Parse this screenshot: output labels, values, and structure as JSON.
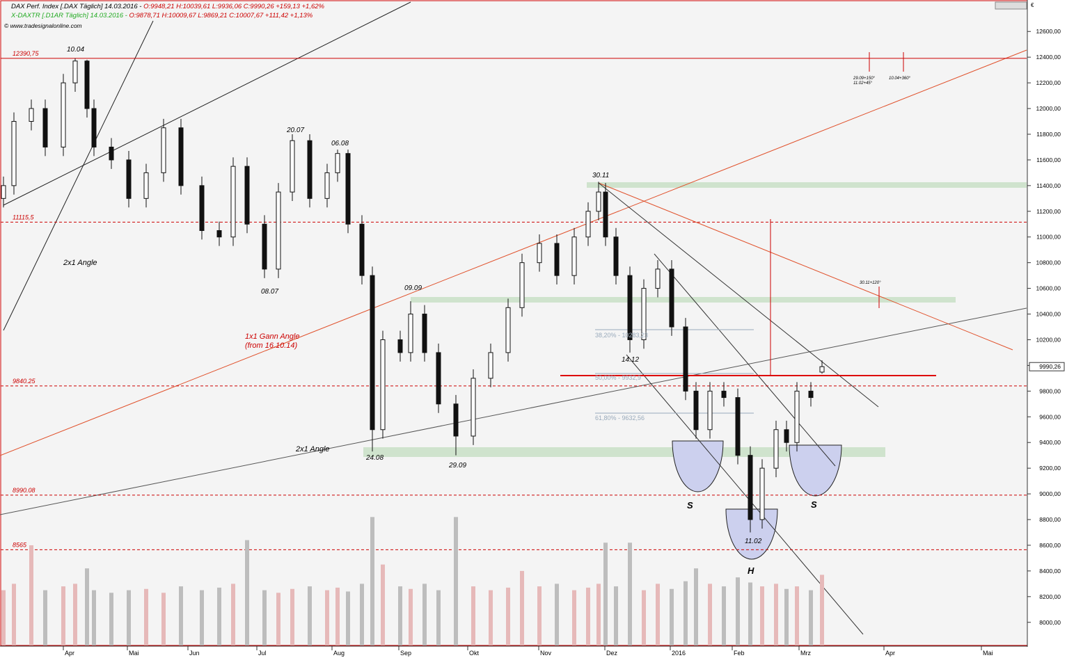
{
  "chart_data": {
    "type": "candlestick",
    "header": {
      "name1": "DAX Perf. Index [.DAX  Täglich] 14.03.2016 - ",
      "values1": "O:9948,21 H:10039,61 L:9936,06 C:9990,26 +159,13 +1,62%",
      "name2": "X-DAXTR [.D1AR  Täglich] 14.03.2016 - ",
      "values2": "O:9878,71 H:10009,67 L:9869,21 C:10007,67 +111,42 +1,13%",
      "source": "© www.tradesignalonline.com",
      "currency": "€"
    },
    "x": [
      1,
      4,
      9,
      13,
      18.2,
      21.6,
      25,
      27,
      32,
      37,
      42,
      47,
      52,
      58,
      63,
      67,
      71,
      76,
      80,
      84,
      89,
      94,
      97,
      100,
      104,
      107,
      110,
      115,
      118,
      122,
      126,
      131,
      136,
      141,
      146,
      150,
      155,
      160,
      165,
      169,
      172,
      174,
      177,
      181,
      185,
      189,
      193,
      197,
      200,
      204,
      208,
      212,
      215.6,
      219,
      223,
      226,
      229,
      233,
      236.2
    ],
    "open": [
      11300,
      11400,
      11900,
      12000,
      11700,
      12200,
      12370,
      12000,
      11700,
      11600,
      11300,
      11500,
      11850,
      11400,
      11050,
      11000,
      11550,
      11100,
      10750,
      11350,
      11750,
      11300,
      11500,
      11650,
      11100,
      10700,
      9500,
      10200,
      10100,
      10400,
      10100,
      9700,
      9450,
      9900,
      10100,
      10450,
      10800,
      10950,
      10700,
      11000,
      11200,
      11350,
      11000,
      10700,
      10200,
      10600,
      10750,
      10300,
      9800,
      9500,
      9800,
      9750,
      9300,
      8800,
      9200,
      9500,
      9400,
      9800,
      9948.21
    ],
    "high": [
      11470,
      11970,
      12070,
      12070,
      12270,
      12390,
      12380,
      12070,
      11770,
      11670,
      11570,
      11920,
      11920,
      11470,
      11120,
      11620,
      11620,
      11170,
      11420,
      11800,
      11800,
      11570,
      11680,
      11680,
      11170,
      10770,
      10270,
      10270,
      10500,
      10470,
      10170,
      9770,
      9970,
      10170,
      10520,
      10870,
      11020,
      11020,
      11070,
      11270,
      11430,
      11420,
      11070,
      10770,
      10670,
      10820,
      10820,
      10370,
      9870,
      9870,
      9870,
      9820,
      9370,
      9270,
      9570,
      9570,
      9870,
      9870,
      10039.61
    ],
    "low": [
      11230,
      11330,
      11830,
      11630,
      11630,
      12130,
      11930,
      11630,
      11530,
      11230,
      11230,
      11430,
      11330,
      10980,
      10930,
      10930,
      11030,
      10680,
      10680,
      11280,
      11230,
      11230,
      11430,
      11030,
      10630,
      9330,
      9430,
      10030,
      10030,
      10030,
      9630,
      9300,
      9380,
      9830,
      10030,
      10380,
      10730,
      10630,
      10630,
      10930,
      11130,
      10930,
      10630,
      10100,
      10130,
      10530,
      10230,
      9730,
      9430,
      9430,
      9680,
      9230,
      8700,
      8730,
      9130,
      9330,
      9330,
      9680,
      9936.06
    ],
    "close": [
      11400,
      11900,
      12000,
      11700,
      12200,
      12370,
      12000,
      11700,
      11600,
      11300,
      11500,
      11850,
      11400,
      11050,
      11000,
      11550,
      11100,
      10750,
      11350,
      11750,
      11300,
      11500,
      11650,
      11100,
      10700,
      9500,
      10200,
      10100,
      10400,
      10100,
      9700,
      9450,
      9900,
      10100,
      10450,
      10800,
      10950,
      10700,
      11000,
      11200,
      11350,
      11000,
      10700,
      10200,
      10600,
      10750,
      10300,
      9800,
      9500,
      9800,
      9750,
      9300,
      8800,
      9200,
      9500,
      9400,
      9800,
      9750,
      9990.26
    ],
    "volume": [
      8250,
      8300,
      8600,
      8250,
      8280,
      8300,
      8420,
      8250,
      8230,
      8250,
      8260,
      8230,
      8280,
      8250,
      8270,
      8300,
      8640,
      8250,
      8230,
      8260,
      8280,
      8250,
      8270,
      8240,
      8300,
      8820,
      8450,
      8280,
      8260,
      8300,
      8250,
      8820,
      8280,
      8250,
      8270,
      8400,
      8280,
      8300,
      8250,
      8270,
      8300,
      8620,
      8280,
      8620,
      8250,
      8300,
      8260,
      8320,
      8420,
      8300,
      8280,
      8350,
      8310,
      8280,
      8300,
      8260,
      8280,
      8250,
      8370
    ],
    "last_price_label": "9990,26",
    "xlim": [
      0,
      295
    ],
    "ylim": [
      7820,
      12845
    ],
    "xticks": [
      {
        "value": 18.2,
        "label": "Apr"
      },
      {
        "value": 36.6,
        "label": "Mai"
      },
      {
        "value": 54,
        "label": "Jun"
      },
      {
        "value": 73.8,
        "label": "Jul"
      },
      {
        "value": 95.4,
        "label": "Aug"
      },
      {
        "value": 114.6,
        "label": "Sep"
      },
      {
        "value": 134.4,
        "label": "Okt"
      },
      {
        "value": 154.8,
        "label": "Nov"
      },
      {
        "value": 173.8,
        "label": "Dez"
      },
      {
        "value": 192.6,
        "label": "2016"
      },
      {
        "value": 210.4,
        "label": "Feb"
      },
      {
        "value": 229.6,
        "label": "Mrz"
      },
      {
        "value": 254,
        "label": "Apr"
      },
      {
        "value": 282,
        "label": "Mai"
      }
    ],
    "yticks": [
      {
        "value": 8000,
        "label": "8000,00"
      },
      {
        "value": 8200,
        "label": "8200,00"
      },
      {
        "value": 8400,
        "label": "8400,00"
      },
      {
        "value": 8600,
        "label": "8600,00"
      },
      {
        "value": 8800,
        "label": "8800,00"
      },
      {
        "value": 9000,
        "label": "9000,00"
      },
      {
        "value": 9200,
        "label": "9200,00"
      },
      {
        "value": 9400,
        "label": "9400,00"
      },
      {
        "value": 9600,
        "label": "9600,00"
      },
      {
        "value": 9800,
        "label": "9800,00"
      },
      {
        "value": 10000,
        "label": "10000,00"
      },
      {
        "value": 10200,
        "label": "10200,00"
      },
      {
        "value": 10400,
        "label": "10400,00"
      },
      {
        "value": 10600,
        "label": "10600,00"
      },
      {
        "value": 10800,
        "label": "10800,00"
      },
      {
        "value": 11000,
        "label": "11000,00"
      },
      {
        "value": 11200,
        "label": "11200,00"
      },
      {
        "value": 11400,
        "label": "11400,00"
      },
      {
        "value": 11600,
        "label": "11600,00"
      },
      {
        "value": 11800,
        "label": "11800,00"
      },
      {
        "value": 12000,
        "label": "12000,00"
      },
      {
        "value": 12200,
        "label": "12200,00"
      },
      {
        "value": 12400,
        "label": "12400,00"
      },
      {
        "value": 12600,
        "label": "12600,00"
      }
    ],
    "levels": [
      {
        "value": 12390.75,
        "label": "12390,75"
      },
      {
        "value": 11115.5,
        "label": "11115,5"
      },
      {
        "value": 9840.25,
        "label": "9840.25"
      },
      {
        "value": 8990.08,
        "label": "8990.08"
      },
      {
        "value": 8565,
        "label": "8565"
      }
    ],
    "annotations": [
      "10.04",
      "20.07",
      "06.08",
      "08.07",
      "09.09",
      "24.08",
      "29.09",
      "30.11",
      "14.12",
      "11.02",
      "2x1 Angle",
      "2x1 Angle",
      "1x1 Gann Angle",
      "(from 16.10.14)",
      "S",
      "S",
      "H",
      "38,20% - 10283,23",
      "50,00% - 9932,9",
      "61,80% - 9632,56",
      "29.09+150°",
      "11.02+45°",
      "10.04+360°",
      "30.11+120°"
    ]
  }
}
